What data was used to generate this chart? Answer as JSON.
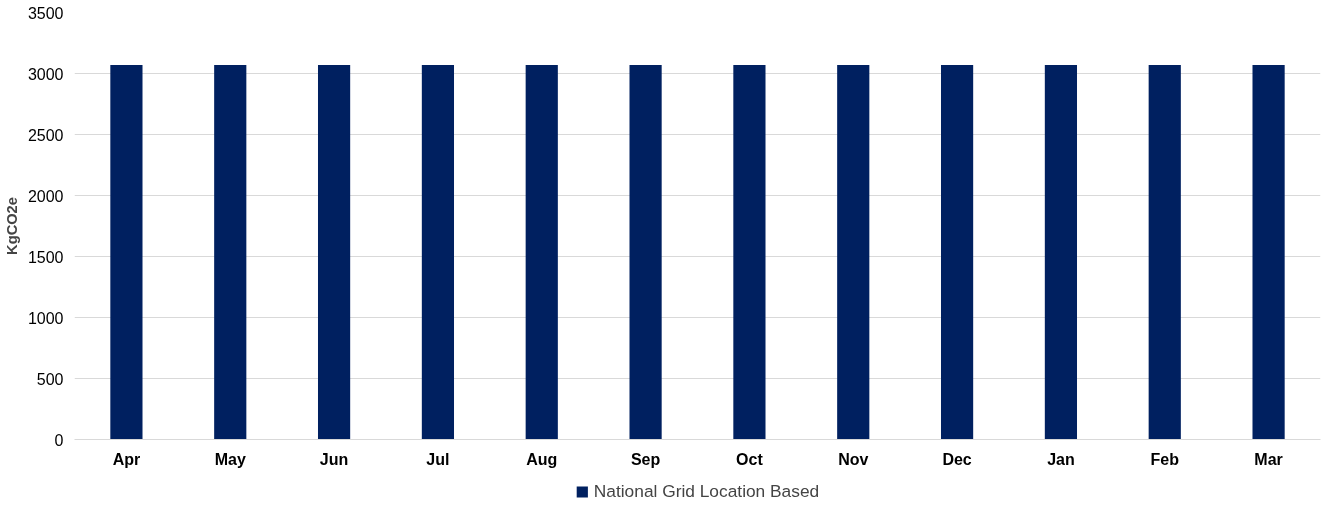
{
  "chart_data": {
    "type": "bar",
    "ylabel": "KgCO2e",
    "categories": [
      "Apr",
      "May",
      "Jun",
      "Jul",
      "Aug",
      "Sep",
      "Oct",
      "Nov",
      "Dec",
      "Jan",
      "Feb",
      "Mar"
    ],
    "series": [
      {
        "name": "National Grid Location Based",
        "color": "#002060",
        "values": [
          3070,
          3070,
          3070,
          3070,
          3070,
          3070,
          3070,
          3070,
          3070,
          3070,
          3070,
          3070
        ]
      }
    ],
    "ylim": [
      0,
      3500
    ],
    "yticks": [
      0,
      500,
      1000,
      1500,
      2000,
      2500,
      3000,
      3500
    ],
    "grid": "y",
    "legend": "bottom"
  }
}
